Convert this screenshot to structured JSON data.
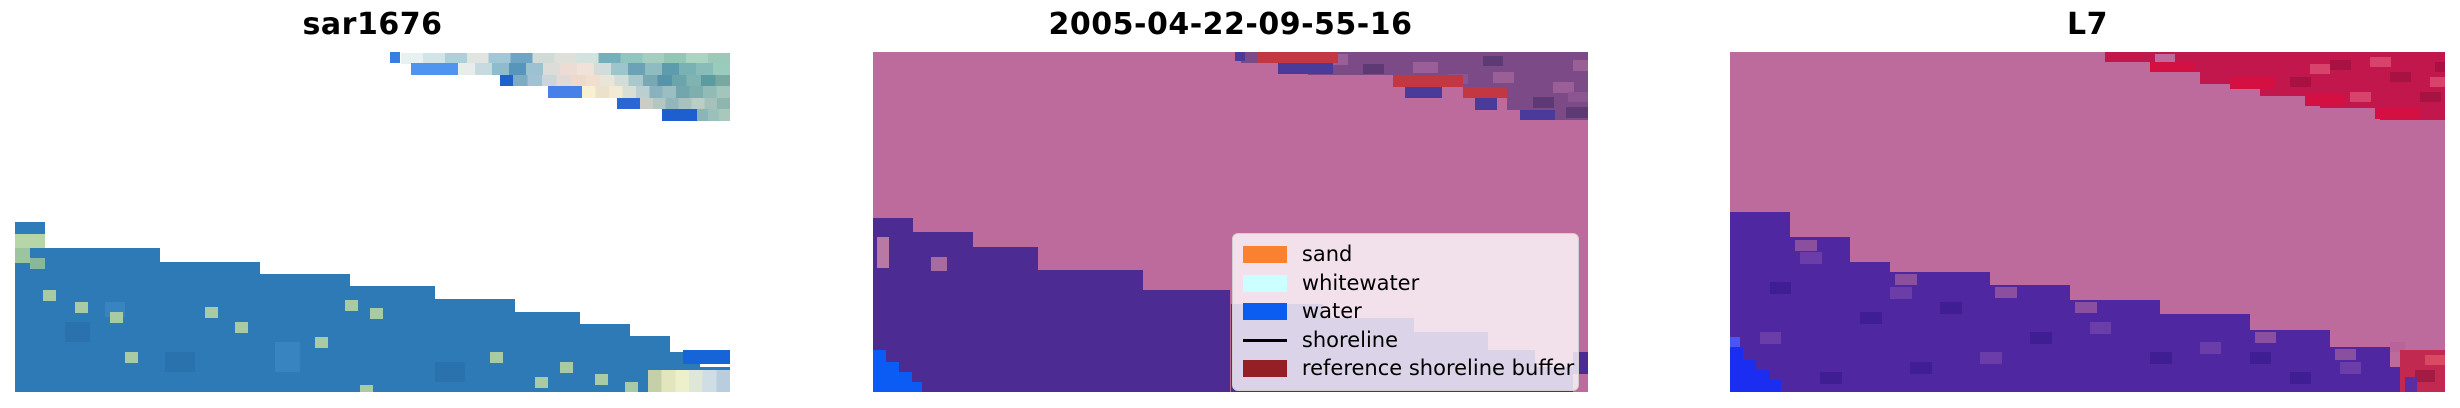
{
  "figure": {
    "background": "#ffffff"
  },
  "chart_data": {
    "type": "heatmap",
    "title": "",
    "panel_titles": [
      "sar1676",
      "2005-04-22-09-55-16",
      "L7"
    ],
    "legend_entries": [
      "sand",
      "whitewater",
      "water",
      "shoreline",
      "reference shoreline buffer"
    ],
    "legend_position": "lower right of middle panel",
    "axes": "off",
    "notes_visible_content": "Three image panels: SAR backscatter image with blue water wedge (left), classified map with pink land, purple water, blue corner and red reference-buffer patches (middle), L7 classified map with pink land, purple water, blue and red corners (right)"
  },
  "panels": [
    {
      "title": "sar1676",
      "bg": "#ffffff",
      "blocks": [
        [
          52.4,
          0,
          1.5,
          3.3,
          "#3a7de0"
        ],
        [
          54.0,
          0.3,
          46.0,
          3.1,
          [
            "#e8f1f1",
            "#d3e4e8",
            "#aed0da",
            "#e2e4e0",
            "#a2c8d8",
            "#6ea4c4",
            "#d0dad6",
            "#e0e0da",
            "#d2e2de",
            "#74b0bc",
            "#90c6be",
            "#a6cec0",
            "#94c6b6",
            "#abd4c2",
            "#9ccab8"
          ]
        ],
        [
          55.4,
          3.3,
          6.5,
          3.5,
          "#4f94ee"
        ],
        [
          61.9,
          3.3,
          38.1,
          3.5,
          [
            "#e8ecea",
            "#c6dae0",
            "#8fbccc",
            "#5795bc",
            "#9cc2d2",
            "#dcdcd8",
            "#ecdcd4",
            "#f0e2d8",
            "#d2dcda",
            "#9cc6cc",
            "#6ba2b8",
            "#8fbcc0",
            "#5c9cac",
            "#78b2b4",
            "#88bcb8",
            "#9accbe"
          ]
        ],
        [
          67.8,
          6.8,
          1.9,
          3.3,
          "#1b62cc"
        ],
        [
          69.7,
          6.8,
          30.3,
          3.3,
          [
            "#7cacc4",
            "#a0c2d2",
            "#ccd6da",
            "#e2dad6",
            "#eed9cd",
            "#f2decf",
            "#e9e5d9",
            "#d2dcd8",
            "#a8c8cc",
            "#78a8b4",
            "#5894a8",
            "#6ca4ac",
            "#80b4b0",
            "#5c9ca0",
            "#78a8a0"
          ]
        ],
        [
          74.5,
          10.1,
          4.8,
          3.4,
          "#4680e8"
        ],
        [
          79.3,
          10.1,
          20.7,
          3.4,
          [
            "#f8f0d0",
            "#ece2cc",
            "#f2ead2",
            "#dadfd3",
            "#bacfd2",
            "#8ab2be",
            "#9abec2",
            "#72a6ae",
            "#7eaeae",
            "#92bab6",
            "#a2c6be"
          ]
        ],
        [
          84.2,
          13.5,
          3.2,
          3.3,
          "#2a66d4"
        ],
        [
          87.4,
          13.5,
          12.6,
          3.3,
          [
            "#c9cdc5",
            "#b2c6c2",
            "#92b6ba",
            "#aac2be",
            "#bacec6",
            "#a6c1ba",
            "#8eb6ae"
          ]
        ],
        [
          90.5,
          16.8,
          4.9,
          3.5,
          "#1e5fd0"
        ],
        [
          95.4,
          16.8,
          4.6,
          3.5,
          [
            "#8ab6ba",
            "#9cc0ba",
            "#a8c8bc"
          ]
        ],
        [
          0,
          57.6,
          20.3,
          42.4,
          "#2e7ab6"
        ],
        [
          20.3,
          61.8,
          14.0,
          38.2,
          "#2e7ab6"
        ],
        [
          34.3,
          65.3,
          12.6,
          34.7,
          "#2e7ab6"
        ],
        [
          46.9,
          68.8,
          11.8,
          31.2,
          "#2e7ab6"
        ],
        [
          58.7,
          72.6,
          11.2,
          27.4,
          "#2e7ab6"
        ],
        [
          69.9,
          76.5,
          9.1,
          23.5,
          "#2e7ab6"
        ],
        [
          79.0,
          80.0,
          7.0,
          20.0,
          "#2e7ab6"
        ],
        [
          86.0,
          83.5,
          5.6,
          16.5,
          "#2e7ab6"
        ],
        [
          91.6,
          88.2,
          4.2,
          11.8,
          "#2e7ab6"
        ],
        [
          95.8,
          92.6,
          4.2,
          7.4,
          "#2e7ab6"
        ],
        [
          0,
          50.0,
          4.2,
          3.6,
          "#2f7cba"
        ],
        [
          0,
          53.6,
          4.2,
          4.0,
          "#b7d6a8"
        ],
        [
          0,
          57.6,
          2.1,
          4.5,
          "#9cc49e"
        ],
        [
          2.1,
          60.5,
          2.1,
          3.2,
          "#88b89c"
        ],
        [
          7.0,
          79.4,
          3.5,
          5.9,
          "#2a72ae"
        ],
        [
          21.0,
          88.2,
          4.2,
          5.9,
          "#2a72ae"
        ],
        [
          36.4,
          85.3,
          3.5,
          8.8,
          "#3884c0"
        ],
        [
          58.8,
          91.2,
          4.2,
          5.9,
          "#2a72ae"
        ],
        [
          12.6,
          73.5,
          2.8,
          4.4,
          "#3884c0"
        ],
        [
          3.9,
          70.0,
          1.8,
          3.3,
          "#a9cba4"
        ],
        [
          8.4,
          73.5,
          1.8,
          3.3,
          "#a9cba4"
        ],
        [
          13.3,
          76.5,
          1.8,
          3.3,
          "#a9cba4"
        ],
        [
          26.6,
          75.0,
          1.8,
          3.3,
          "#a9cba4"
        ],
        [
          46.2,
          73.0,
          1.8,
          3.3,
          "#a9cba4"
        ],
        [
          49.7,
          75.3,
          1.8,
          3.3,
          "#a9cba4"
        ],
        [
          42.0,
          83.8,
          1.8,
          3.3,
          "#a9cba4"
        ],
        [
          15.4,
          88.2,
          1.8,
          3.3,
          "#a9cba4"
        ],
        [
          66.4,
          88.2,
          1.8,
          3.3,
          "#a9cba4"
        ],
        [
          72.7,
          95.6,
          1.8,
          3.3,
          "#a9cba4"
        ],
        [
          76.2,
          91.2,
          1.8,
          3.3,
          "#a9cba4"
        ],
        [
          81.1,
          94.7,
          1.8,
          3.3,
          "#a9cba4"
        ],
        [
          85.3,
          97.0,
          1.8,
          3.0,
          "#a9cba4"
        ],
        [
          48.3,
          98.0,
          1.8,
          2.0,
          "#a9cba4"
        ],
        [
          30.8,
          79.4,
          1.8,
          3.3,
          "#a9cba4"
        ],
        [
          93.4,
          87.6,
          6.6,
          4.2,
          "#1565d8"
        ],
        [
          88.5,
          93.5,
          11.5,
          6.5,
          [
            "#c5cfa8",
            "#e3e5bd",
            "#eef0cc",
            "#dfe8d8",
            "#cfdde4",
            "#b8cede"
          ]
        ]
      ]
    },
    {
      "title": "2005-04-22-09-55-16",
      "bg": "#bc6b9c",
      "blocks": [
        [
          51.5,
          0,
          9.4,
          3.2,
          "#7c4a86"
        ],
        [
          60.8,
          0,
          11.9,
          6.8,
          "#7c4a86"
        ],
        [
          72.7,
          0,
          9.8,
          10.3,
          "#7c4a86"
        ],
        [
          82.5,
          0,
          6.2,
          13.5,
          "#7c4a86"
        ],
        [
          88.7,
          0,
          6.7,
          17.1,
          "#7c4a86"
        ],
        [
          95.4,
          0,
          4.6,
          20.0,
          "#7c4a86"
        ],
        [
          62.9,
          0.6,
          3.5,
          3.2,
          "#9a5f97"
        ],
        [
          75.5,
          2.9,
          3.5,
          3.2,
          "#9a5f97"
        ],
        [
          86.7,
          5.9,
          3.0,
          3.2,
          "#9a5f97"
        ],
        [
          95.1,
          8.8,
          3.0,
          3.2,
          "#9a5f97"
        ],
        [
          97.9,
          2.4,
          2.1,
          3.2,
          "#9a5f97"
        ],
        [
          68.5,
          3.5,
          3.0,
          3.0,
          "#5e3a74"
        ],
        [
          85.3,
          1.2,
          2.8,
          3.0,
          "#5e3a74"
        ],
        [
          92.3,
          13.2,
          3.0,
          3.2,
          "#5e3a74"
        ],
        [
          96.9,
          16.2,
          3.1,
          3.2,
          "#5e3a74"
        ],
        [
          60.1,
          1.5,
          2.8,
          3.0,
          "#8a5590"
        ],
        [
          80.4,
          6.5,
          2.8,
          3.0,
          "#8a5590"
        ],
        [
          97.2,
          11.8,
          2.8,
          3.0,
          "#8a5590"
        ],
        [
          53.8,
          0,
          11.2,
          3.2,
          "#c23742"
        ],
        [
          72.7,
          6.8,
          9.8,
          3.5,
          "#c23742"
        ],
        [
          82.5,
          10.3,
          6.2,
          3.2,
          "#c23742"
        ],
        [
          50.6,
          0,
          1.4,
          2.6,
          "#4a3b9b"
        ],
        [
          56.6,
          3.2,
          7.7,
          3.2,
          "#4a3b9b"
        ],
        [
          74.4,
          10.3,
          5.2,
          3.2,
          "#4a3b9b"
        ],
        [
          84.2,
          13.5,
          3.1,
          3.5,
          "#4a3b9b"
        ],
        [
          90.5,
          17.1,
          4.9,
          2.9,
          "#4a3b9b"
        ],
        [
          0,
          48.8,
          5.6,
          51.2,
          "#4c2b93"
        ],
        [
          5.6,
          52.9,
          8.4,
          47.1,
          "#4c2b93"
        ],
        [
          14.0,
          57.4,
          9.1,
          42.6,
          "#4c2b93"
        ],
        [
          23.1,
          64.1,
          14.7,
          35.9,
          "#4c2b93"
        ],
        [
          37.8,
          70.0,
          12.2,
          30.0,
          "#4c2b93"
        ],
        [
          50.0,
          74.1,
          13.0,
          25.9,
          "#4c2b93"
        ],
        [
          63.0,
          78.2,
          12.6,
          21.8,
          "#4c2b93"
        ],
        [
          75.5,
          82.4,
          10.5,
          17.6,
          "#4c2b93"
        ],
        [
          86.0,
          87.6,
          6.6,
          12.4,
          "#4c2b93"
        ],
        [
          92.6,
          92.6,
          5.3,
          7.4,
          "#4c2b93"
        ],
        [
          97.9,
          88.2,
          2.1,
          6.5,
          "#4c2b93"
        ],
        [
          0.6,
          54.4,
          1.7,
          9.0,
          "#b87aa4"
        ],
        [
          8.1,
          60.3,
          2.2,
          4.0,
          "#a76ba0"
        ],
        [
          0,
          87.6,
          1.8,
          12.4,
          "#0b5cf5"
        ],
        [
          1.8,
          91.2,
          1.8,
          8.8,
          "#0b5cf5"
        ],
        [
          3.6,
          94.1,
          1.9,
          5.9,
          "#0b5cf5"
        ],
        [
          5.5,
          97.1,
          1.4,
          2.9,
          "#0b5cf5"
        ]
      ]
    },
    {
      "title": "L7",
      "bg": "#bc6b9c",
      "blocks": [
        [
          52.4,
          0,
          6.3,
          2.9,
          "#c2174c"
        ],
        [
          58.7,
          0,
          7.0,
          5.9,
          "#c2174c"
        ],
        [
          65.7,
          0,
          8.4,
          9.4,
          "#c2174c"
        ],
        [
          74.1,
          0,
          8.4,
          12.9,
          "#c2174c"
        ],
        [
          82.5,
          0,
          8.4,
          16.5,
          "#c2174c"
        ],
        [
          90.9,
          0,
          9.1,
          20.0,
          "#c2174c"
        ],
        [
          83.9,
          2.4,
          3.0,
          3.0,
          "#a81243"
        ],
        [
          92.3,
          5.9,
          3.0,
          3.0,
          "#a81243"
        ],
        [
          96.5,
          11.8,
          3.0,
          3.0,
          "#a81243"
        ],
        [
          98.6,
          2.9,
          1.4,
          3.0,
          "#a81243"
        ],
        [
          78.3,
          7.4,
          3.0,
          3.0,
          "#a81243"
        ],
        [
          89.5,
          1.5,
          3.0,
          3.0,
          "#d8436c"
        ],
        [
          97.9,
          7.4,
          2.1,
          3.0,
          "#d8436c"
        ],
        [
          86.7,
          11.8,
          3.0,
          3.0,
          "#d8436c"
        ],
        [
          81.1,
          3.5,
          2.8,
          3.0,
          "#d8436c"
        ],
        [
          59.4,
          0.6,
          2.8,
          2.4,
          "#bc6b9c"
        ],
        [
          58.7,
          2.9,
          6.3,
          2.9,
          "#d40f42"
        ],
        [
          69.9,
          7.4,
          6.3,
          3.5,
          "#d40f42"
        ],
        [
          80.4,
          12.4,
          5.6,
          3.5,
          "#d40f42"
        ],
        [
          90.2,
          16.5,
          6.3,
          3.2,
          "#d40f42"
        ],
        [
          0,
          47.0,
          8.4,
          53.0,
          "#4f27a0"
        ],
        [
          8.4,
          54.4,
          8.4,
          45.6,
          "#4f27a0"
        ],
        [
          16.8,
          61.8,
          5.6,
          38.2,
          "#4f27a0"
        ],
        [
          22.4,
          64.7,
          14.0,
          35.3,
          "#4f27a0"
        ],
        [
          36.4,
          68.5,
          11.2,
          31.5,
          "#4f27a0"
        ],
        [
          47.6,
          72.9,
          12.6,
          27.1,
          "#4f27a0"
        ],
        [
          60.1,
          77.1,
          12.6,
          22.9,
          "#4f27a0"
        ],
        [
          72.7,
          81.8,
          11.2,
          18.2,
          "#4f27a0"
        ],
        [
          83.9,
          86.8,
          8.4,
          13.2,
          "#4f27a0"
        ],
        [
          92.3,
          92.6,
          7.7,
          7.4,
          "#4f27a0"
        ],
        [
          5.6,
          67.6,
          3.0,
          3.5,
          "#3f1d92"
        ],
        [
          18.2,
          76.5,
          3.0,
          3.5,
          "#3f1d92"
        ],
        [
          29.4,
          73.5,
          3.0,
          3.5,
          "#3f1d92"
        ],
        [
          42.0,
          82.4,
          3.0,
          3.5,
          "#3f1d92"
        ],
        [
          58.8,
          88.2,
          3.0,
          3.5,
          "#3f1d92"
        ],
        [
          25.2,
          91.2,
          3.0,
          3.5,
          "#3f1d92"
        ],
        [
          12.6,
          94.1,
          3.0,
          3.5,
          "#3f1d92"
        ],
        [
          72.7,
          88.2,
          3.0,
          3.5,
          "#3f1d92"
        ],
        [
          78.3,
          94.1,
          3.0,
          3.5,
          "#3f1d92"
        ],
        [
          9.8,
          58.8,
          3.0,
          3.5,
          "#6a3da8"
        ],
        [
          22.4,
          69.1,
          3.0,
          3.5,
          "#6a3da8"
        ],
        [
          35.0,
          88.2,
          3.0,
          3.5,
          "#6a3da8"
        ],
        [
          50.3,
          79.4,
          3.0,
          3.5,
          "#6a3da8"
        ],
        [
          65.7,
          85.3,
          3.0,
          3.5,
          "#6a3da8"
        ],
        [
          85.3,
          91.2,
          3.0,
          3.5,
          "#6a3da8"
        ],
        [
          4.2,
          82.4,
          3.0,
          3.5,
          "#6a3da8"
        ],
        [
          9.1,
          55.3,
          3.0,
          3.3,
          "#8a4f9f"
        ],
        [
          23.1,
          65.3,
          3.0,
          3.3,
          "#8a4f9f"
        ],
        [
          48.3,
          73.5,
          3.0,
          3.3,
          "#8a4f9f"
        ],
        [
          73.4,
          82.4,
          3.0,
          3.3,
          "#8a4f9f"
        ],
        [
          84.6,
          87.4,
          3.0,
          3.3,
          "#8a4f9f"
        ],
        [
          37.1,
          69.1,
          3.0,
          3.3,
          "#8a4f9f"
        ],
        [
          0,
          83.8,
          1.4,
          3.0,
          "#4a55f5"
        ],
        [
          0,
          86.8,
          1.8,
          13.2,
          "#1b2df0"
        ],
        [
          1.8,
          90.6,
          1.8,
          9.4,
          "#1b2df0"
        ],
        [
          3.6,
          93.5,
          2.0,
          6.5,
          "#1b2df0"
        ],
        [
          5.6,
          96.5,
          1.6,
          3.5,
          "#1b2df0"
        ],
        [
          92.3,
          85.3,
          2.1,
          3.0,
          "#b8639a"
        ],
        [
          93.7,
          87.6,
          6.3,
          12.4,
          "#c22950"
        ],
        [
          95.8,
          93.5,
          2.8,
          3.5,
          "#a31a42"
        ],
        [
          97.2,
          89.1,
          2.8,
          3.0,
          "#d84a62"
        ],
        [
          94.4,
          95.6,
          1.7,
          4.4,
          "#5a2da5"
        ]
      ]
    }
  ],
  "legend": {
    "background": "rgba(255,255,255,0.8)",
    "border_color": "#cfcfcf",
    "items": [
      {
        "label": "sand",
        "swatch": "patch",
        "color": "#f9812f"
      },
      {
        "label": "whitewater",
        "swatch": "patch",
        "color": "#ccffff"
      },
      {
        "label": "water",
        "swatch": "patch",
        "color": "#0b5cf0"
      },
      {
        "label": "shoreline",
        "swatch": "line",
        "color": "#000000"
      },
      {
        "label": "reference shoreline buffer",
        "swatch": "patch",
        "color": "#941f24"
      }
    ]
  }
}
